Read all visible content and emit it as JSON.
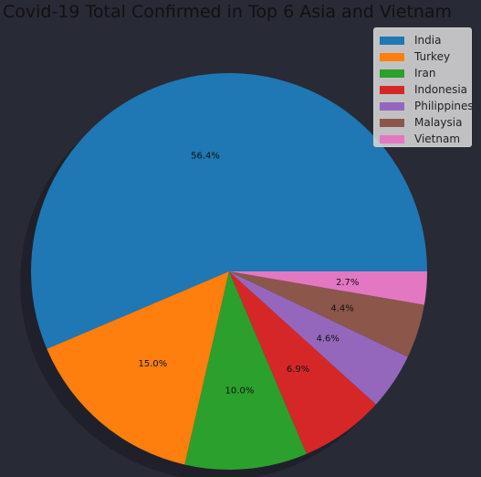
{
  "chart_data": {
    "type": "pie",
    "title": "Covid-19 Total Confirmed in Top 6 Asia and Vietnam",
    "categories": [
      "India",
      "Turkey",
      "Iran",
      "Indonesia",
      "Philippines",
      "Malaysia",
      "Vietnam"
    ],
    "values": [
      56.4,
      15.0,
      10.0,
      6.9,
      4.6,
      4.4,
      2.7
    ],
    "labels": [
      "56.4%",
      "15.0%",
      "10.0%",
      "6.9%",
      "4.6%",
      "4.4%",
      "2.7%"
    ],
    "colors": [
      "#1f77b4",
      "#ff7f0e",
      "#2ca02c",
      "#d62728",
      "#9467bd",
      "#8c564b",
      "#e377c2"
    ],
    "start_angle": 0,
    "direction": "counterclockwise",
    "shadow": true,
    "legend_position": "top-right"
  }
}
